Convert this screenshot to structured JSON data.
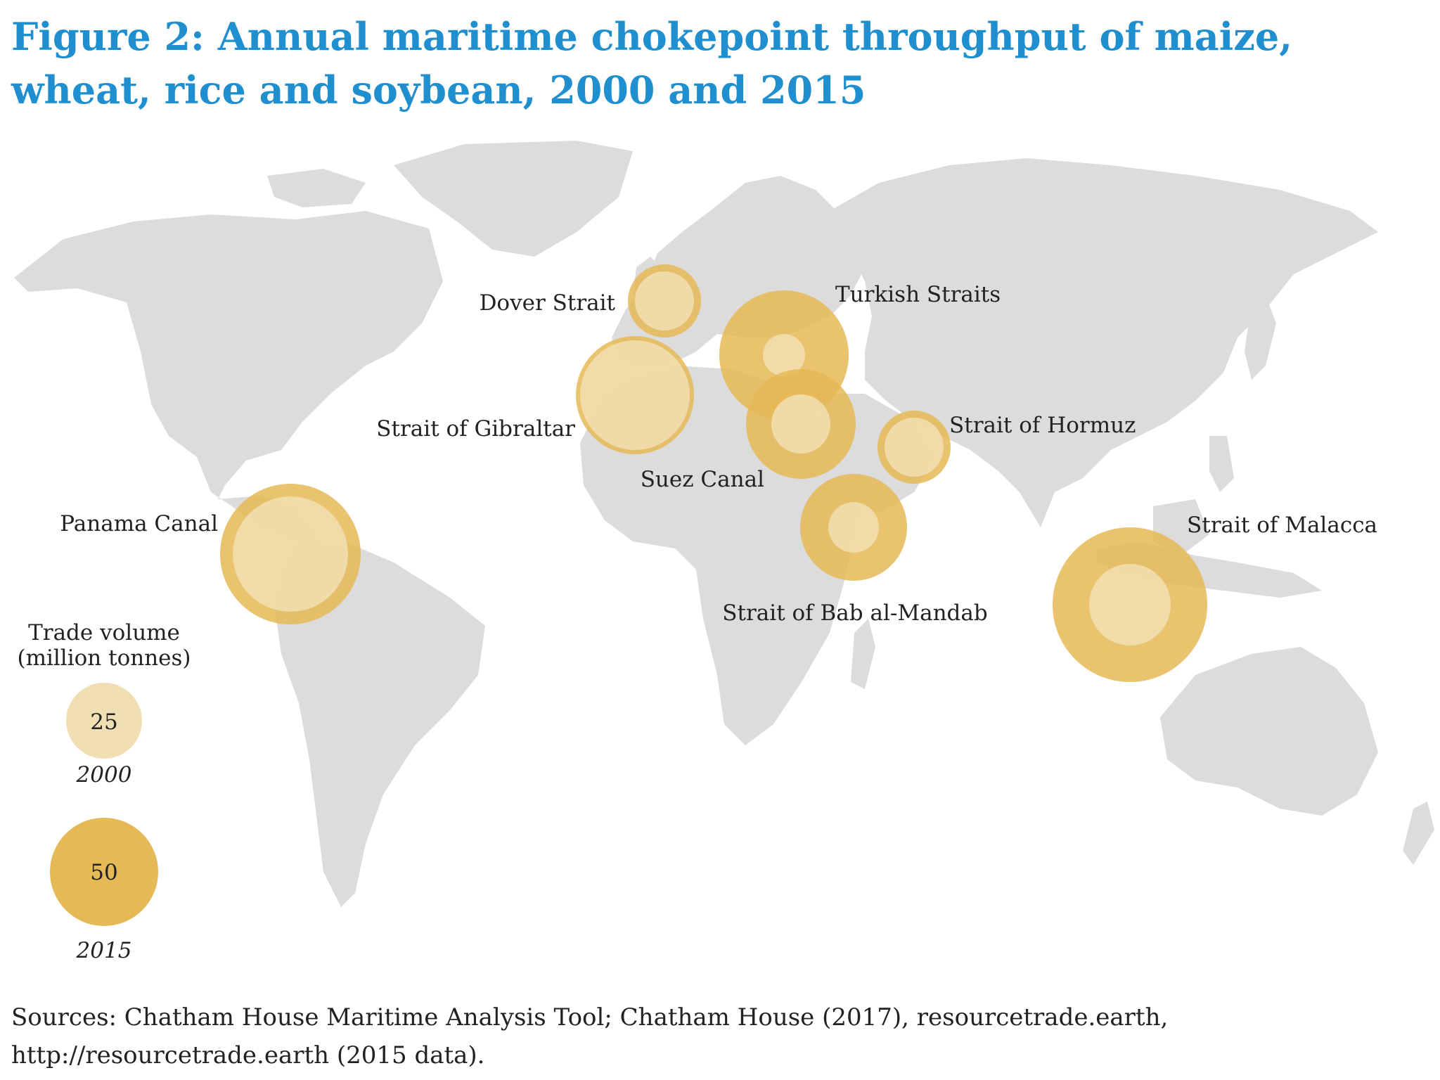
{
  "title": "Figure 2: Annual maritime chokepoint throughput of maize, wheat, rice and soybean, 2000 and 2015",
  "colors": {
    "land": "#dcdcdc",
    "circle_2000": "#f1dfb4",
    "circle_2015": "#e5b955",
    "title": "#1f8fcf"
  },
  "legend": {
    "heading_line1": "Trade volume",
    "heading_line2": "(million tonnes)",
    "items": [
      {
        "value": "25",
        "year": "2000"
      },
      {
        "value": "50",
        "year": "2015"
      }
    ]
  },
  "chokepoints": [
    {
      "id": "dover",
      "label": "Dover Strait"
    },
    {
      "id": "turkish",
      "label": "Turkish Straits"
    },
    {
      "id": "gibraltar",
      "label": "Strait of Gibraltar"
    },
    {
      "id": "hormuz",
      "label": "Strait of Hormuz"
    },
    {
      "id": "suez",
      "label": "Suez Canal"
    },
    {
      "id": "panama",
      "label": "Panama Canal"
    },
    {
      "id": "malacca",
      "label": "Strait of Malacca"
    },
    {
      "id": "bab",
      "label": "Strait of Bab al-Mandab"
    }
  ],
  "source": "Sources: Chatham House Maritime Analysis Tool; Chatham House (2017), resourcetrade.earth, http://resourcetrade.earth (2015 data)."
}
